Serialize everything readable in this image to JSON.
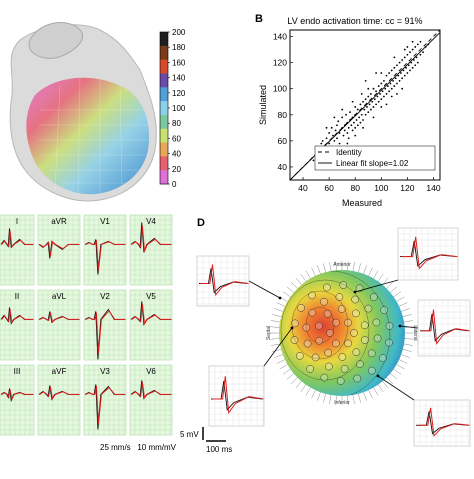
{
  "panels": {
    "b_letter": "B",
    "d_letter": "D"
  },
  "colorbar": {
    "ticks": [
      "200",
      "180",
      "160",
      "140",
      "120",
      "100",
      "80",
      "60",
      "40",
      "20",
      "0"
    ],
    "colors": [
      "#1f1f1f",
      "#7a3b16",
      "#d94a2a",
      "#6b4aa8",
      "#4fa0d8",
      "#8ad0e8",
      "#7ac8a0",
      "#c8e070",
      "#e8a858",
      "#e86070",
      "#e070d8"
    ]
  },
  "ecg": {
    "leads": [
      "I",
      "aVR",
      "V1",
      "V4",
      "II",
      "aVL",
      "V2",
      "V5",
      "III",
      "aVF",
      "V3",
      "V6"
    ],
    "scale_text": "25 mm/s   10 mm/mV",
    "measured_color": "#111111",
    "simulated_color": "#e02020",
    "grid_color": "#a8dca0",
    "grid_bg": "#e6f7e0"
  },
  "d_panel": {
    "map_labels": {
      "anterior": "Anterior",
      "septal": "Septal",
      "lateral": "Lateral",
      "inferior": "Inferior"
    },
    "scale_mv": "5 mV",
    "scale_ms": "100 ms"
  },
  "chart_data": {
    "type": "scatter",
    "title": "LV endo activation time: cc = 91%",
    "xlabel": "Measured",
    "ylabel": "Simulated",
    "xlim": [
      30,
      145
    ],
    "ylim": [
      30,
      145
    ],
    "xticks": [
      40,
      60,
      80,
      100,
      120,
      140
    ],
    "yticks": [
      40,
      60,
      80,
      100,
      120,
      140
    ],
    "legend": {
      "placement": "bottom-right",
      "entries": [
        "Identity",
        "Linear fit slope=1.02"
      ]
    },
    "identity": [
      [
        30,
        30
      ],
      [
        145,
        145
      ]
    ],
    "fit": [
      [
        30,
        25
      ],
      [
        145,
        143
      ]
    ],
    "points": [
      [
        48,
        45
      ],
      [
        50,
        52
      ],
      [
        52,
        55
      ],
      [
        53,
        48
      ],
      [
        55,
        60
      ],
      [
        56,
        50
      ],
      [
        58,
        62
      ],
      [
        60,
        58
      ],
      [
        60,
        66
      ],
      [
        62,
        55
      ],
      [
        62,
        70
      ],
      [
        63,
        64
      ],
      [
        64,
        60
      ],
      [
        65,
        68
      ],
      [
        66,
        72
      ],
      [
        66,
        62
      ],
      [
        67,
        75
      ],
      [
        68,
        66
      ],
      [
        68,
        58
      ],
      [
        70,
        70
      ],
      [
        70,
        78
      ],
      [
        71,
        64
      ],
      [
        72,
        72
      ],
      [
        72,
        68
      ],
      [
        73,
        80
      ],
      [
        74,
        74
      ],
      [
        74,
        66
      ],
      [
        75,
        70
      ],
      [
        75,
        62
      ],
      [
        76,
        76
      ],
      [
        76,
        82
      ],
      [
        77,
        72
      ],
      [
        78,
        68
      ],
      [
        78,
        78
      ],
      [
        79,
        74
      ],
      [
        80,
        80
      ],
      [
        80,
        70
      ],
      [
        80,
        86
      ],
      [
        81,
        76
      ],
      [
        82,
        72
      ],
      [
        82,
        84
      ],
      [
        83,
        78
      ],
      [
        84,
        74
      ],
      [
        84,
        88
      ],
      [
        85,
        80
      ],
      [
        86,
        76
      ],
      [
        86,
        90
      ],
      [
        87,
        84
      ],
      [
        88,
        80
      ],
      [
        88,
        92
      ],
      [
        89,
        86
      ],
      [
        90,
        82
      ],
      [
        90,
        94
      ],
      [
        91,
        88
      ],
      [
        92,
        84
      ],
      [
        92,
        96
      ],
      [
        93,
        90
      ],
      [
        94,
        86
      ],
      [
        94,
        100
      ],
      [
        95,
        92
      ],
      [
        96,
        88
      ],
      [
        96,
        98
      ],
      [
        97,
        94
      ],
      [
        98,
        90
      ],
      [
        98,
        102
      ],
      [
        99,
        96
      ],
      [
        100,
        92
      ],
      [
        100,
        104
      ],
      [
        101,
        98
      ],
      [
        102,
        94
      ],
      [
        102,
        106
      ],
      [
        103,
        100
      ],
      [
        104,
        96
      ],
      [
        104,
        110
      ],
      [
        105,
        102
      ],
      [
        106,
        98
      ],
      [
        106,
        112
      ],
      [
        107,
        104
      ],
      [
        108,
        100
      ],
      [
        108,
        114
      ],
      [
        109,
        106
      ],
      [
        110,
        102
      ],
      [
        110,
        116
      ],
      [
        111,
        108
      ],
      [
        112,
        104
      ],
      [
        112,
        118
      ],
      [
        113,
        110
      ],
      [
        114,
        106
      ],
      [
        114,
        120
      ],
      [
        115,
        112
      ],
      [
        116,
        108
      ],
      [
        116,
        122
      ],
      [
        117,
        114
      ],
      [
        118,
        110
      ],
      [
        118,
        124
      ],
      [
        119,
        116
      ],
      [
        120,
        112
      ],
      [
        120,
        126
      ],
      [
        121,
        118
      ],
      [
        122,
        114
      ],
      [
        122,
        128
      ],
      [
        123,
        120
      ],
      [
        124,
        116
      ],
      [
        124,
        130
      ],
      [
        125,
        122
      ],
      [
        126,
        118
      ],
      [
        126,
        132
      ],
      [
        127,
        124
      ],
      [
        128,
        120
      ],
      [
        128,
        134
      ],
      [
        130,
        126
      ],
      [
        130,
        136
      ],
      [
        132,
        128
      ],
      [
        134,
        132
      ],
      [
        136,
        134
      ],
      [
        120,
        132
      ],
      [
        118,
        130
      ],
      [
        124,
        136
      ],
      [
        110,
        124
      ],
      [
        100,
        112
      ],
      [
        90,
        100
      ],
      [
        85,
        96
      ],
      [
        78,
        90
      ],
      [
        70,
        84
      ],
      [
        64,
        78
      ],
      [
        58,
        70
      ],
      [
        94,
        78
      ],
      [
        100,
        86
      ],
      [
        108,
        94
      ],
      [
        112,
        96
      ],
      [
        86,
        70
      ],
      [
        80,
        64
      ],
      [
        74,
        58
      ],
      [
        104,
        88
      ],
      [
        116,
        100
      ],
      [
        60,
        50
      ],
      [
        56,
        44
      ],
      [
        54,
        58
      ],
      [
        88,
        106
      ],
      [
        96,
        112
      ]
    ]
  }
}
